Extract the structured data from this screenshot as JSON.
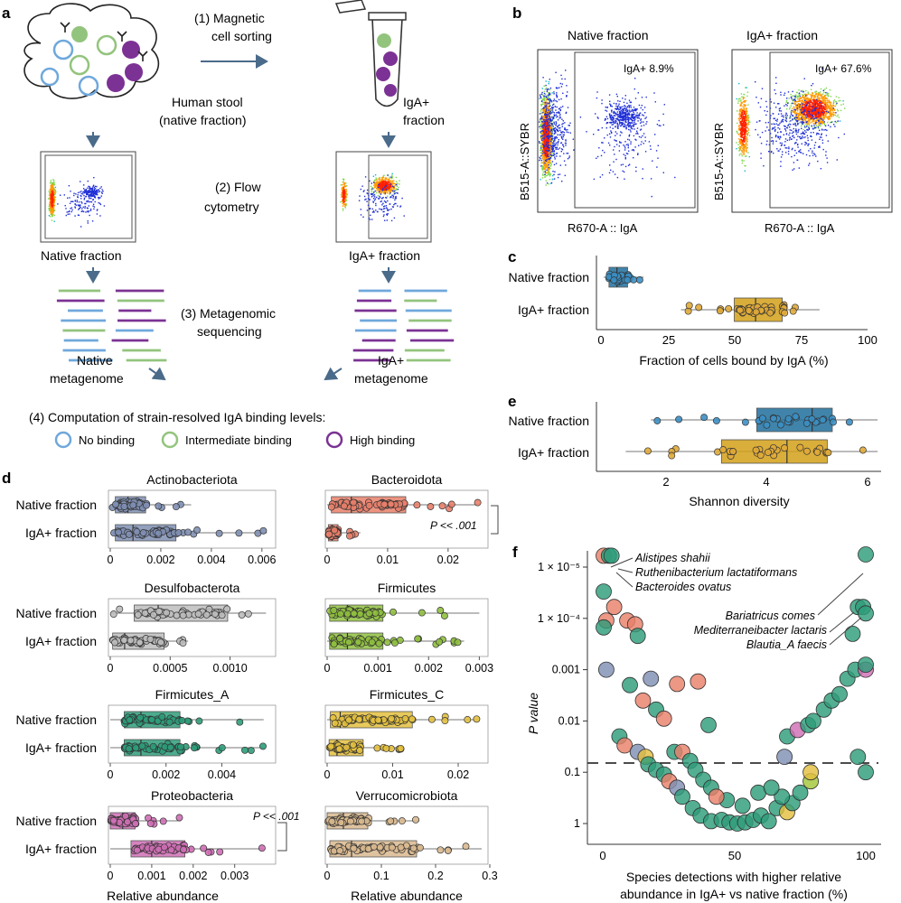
{
  "panels": {
    "a": {
      "letter": "a",
      "step1": [
        "(1) Magnetic",
        "cell sorting"
      ],
      "stool_label": [
        "Human stool",
        "(native fraction)"
      ],
      "iga_label": [
        "IgA+",
        "fraction"
      ],
      "step2": [
        "(2) Flow",
        "cytometry"
      ],
      "native_fraction": "Native fraction",
      "iga_fraction": "IgA+ fraction",
      "step3": [
        "(3) Metagenomic",
        "sequencing"
      ],
      "native_meta": [
        "Native",
        "metagenome"
      ],
      "iga_meta": [
        "IgA+",
        "metagenome"
      ],
      "step4": "(4) Computation of strain-resolved IgA binding levels:",
      "legend": [
        {
          "label": "No binding",
          "color": "#6fa8dc"
        },
        {
          "label": "Intermediate binding",
          "color": "#93c47d"
        },
        {
          "label": "High binding",
          "color": "#7b3294"
        }
      ]
    },
    "b": {
      "letter": "b",
      "plots": [
        {
          "title": "Native fraction",
          "gate_label": "IgA+ 8.9%",
          "ylabel": "B515-A::SYBR",
          "xlabel": "R670-A :: IgA"
        },
        {
          "title": "IgA+ fraction",
          "gate_label": "IgA+ 67.6%",
          "ylabel": "B515-A::SYBR",
          "xlabel": "R670-A :: IgA"
        }
      ]
    },
    "c": {
      "letter": "c",
      "xlabel": "Fraction of cells bound by IgA (%)",
      "ticks": [
        "0",
        "25",
        "50",
        "75",
        "100"
      ],
      "rows": [
        "Native fraction",
        "IgA+ fraction"
      ]
    },
    "e": {
      "letter": "e",
      "xlabel": "Shannon diversity",
      "ticks": [
        "2",
        "4",
        "6"
      ],
      "rows": [
        "Native fraction",
        "IgA+ fraction"
      ]
    },
    "d": {
      "letter": "d",
      "rows": [
        "Native fraction",
        "IgA+ fraction"
      ],
      "xlabel": "Relative abundance",
      "pval": "P << .001",
      "phyla": [
        {
          "name": "Actinobacteriota",
          "ticks": [
            "0",
            "0.002",
            "0.004",
            "0.006"
          ]
        },
        {
          "name": "Bacteroidota",
          "ticks": [
            "0",
            "0.01",
            "0.02"
          ]
        },
        {
          "name": "Desulfobacterota",
          "ticks": [
            "0",
            "0.0005",
            "0.0010"
          ]
        },
        {
          "name": "Firmicutes",
          "ticks": [
            "0",
            "0.001",
            "0.002",
            "0.003"
          ]
        },
        {
          "name": "Firmicutes_A",
          "ticks": [
            "0",
            "0.002",
            "0.004"
          ]
        },
        {
          "name": "Firmicutes_C",
          "ticks": [
            "0",
            "0.01",
            "0.02"
          ]
        },
        {
          "name": "Proteobacteria",
          "ticks": [
            "0",
            "0.001",
            "0.002",
            "0.003"
          ]
        },
        {
          "name": "Verrucomicrobiota",
          "ticks": [
            "0",
            "0.1",
            "0.2",
            "0.3"
          ]
        }
      ]
    },
    "f": {
      "letter": "f",
      "ylabel": "P value",
      "xlabel": [
        "Species detections with higher relative",
        "abundance in IgA+ vs native fraction (%)"
      ],
      "yticks": [
        "1 × 10⁻⁵",
        "1 × 10⁻⁴",
        "0.001",
        "0.01",
        "0.1",
        "1"
      ],
      "xticks": [
        "0",
        "50",
        "100"
      ],
      "left_labels": [
        "Alistipes shahii",
        "Ruthenibacterium lactatiformans",
        "Bacteroides ovatus"
      ],
      "right_labels": [
        "Bariatricus comes",
        "Mediterraneibacter lactaris",
        "Blautia_A faecis"
      ]
    }
  },
  "chart_data": [
    {
      "type": "box",
      "id": "c",
      "xlabel": "Fraction of cells bound by IgA (%)",
      "xlim": [
        0,
        100
      ],
      "categories": [
        "Native fraction",
        "IgA+ fraction"
      ],
      "series": [
        {
          "name": "Native fraction",
          "color": "#1f6e9c",
          "q1": 3,
          "median": 6,
          "q3": 10,
          "whisker": [
            1,
            16
          ]
        },
        {
          "name": "IgA+ fraction",
          "color": "#d4a017",
          "q1": 50,
          "median": 58,
          "q3": 68,
          "whisker": [
            30,
            82
          ]
        }
      ]
    },
    {
      "type": "box",
      "id": "e",
      "xlabel": "Shannon diversity",
      "xlim": [
        1,
        6.3
      ],
      "categories": [
        "Native fraction",
        "IgA+ fraction"
      ],
      "series": [
        {
          "name": "Native fraction",
          "color": "#1f6e9c",
          "q1": 3.8,
          "median": 4.9,
          "q3": 5.3,
          "whisker": [
            1.7,
            6.2
          ]
        },
        {
          "name": "IgA+ fraction",
          "color": "#d4a017",
          "q1": 3.1,
          "median": 4.4,
          "q3": 5.2,
          "whisker": [
            1.2,
            6.2
          ]
        }
      ]
    },
    {
      "type": "box",
      "id": "d",
      "xlabel": "Relative abundance",
      "categories": [
        "Native fraction",
        "IgA+ fraction"
      ],
      "panels": [
        {
          "name": "Actinobacteriota",
          "xlim": [
            0,
            0.0064
          ],
          "color": "#7f8fb3",
          "native": {
            "q1": 0.0002,
            "median": 0.0007,
            "q3": 0.0014,
            "whisker": [
              0,
              0.0032
            ]
          },
          "iga": {
            "q1": 0.0002,
            "median": 0.0009,
            "q3": 0.0026,
            "whisker": [
              0,
              0.0062
            ]
          }
        },
        {
          "name": "Bacteroidota",
          "xlim": [
            0,
            0.026
          ],
          "color": "#e9806a",
          "native": {
            "q1": 0.0007,
            "median": 0.004,
            "q3": 0.013,
            "whisker": [
              0,
              0.025
            ]
          },
          "iga": {
            "q1": 0.0002,
            "median": 0.0008,
            "q3": 0.0018,
            "whisker": [
              0,
              0.0055
            ]
          }
        },
        {
          "name": "Desulfobacterota",
          "xlim": [
            0,
            0.00135
          ],
          "color": "#bdbdbd",
          "native": {
            "q1": 0.0002,
            "median": 0.0004,
            "q3": 0.00098,
            "whisker": [
              0,
              0.0013
            ]
          },
          "iga": {
            "q1": 2e-05,
            "median": 0.00012,
            "q3": 0.00045,
            "whisker": [
              0,
              0.00065
            ]
          }
        },
        {
          "name": "Firmicutes",
          "xlim": [
            0,
            0.0031
          ],
          "color": "#8fbf3f",
          "native": {
            "q1": 5e-05,
            "median": 0.0004,
            "q3": 0.0011,
            "whisker": [
              0,
              0.003
            ]
          },
          "iga": {
            "q1": 5e-05,
            "median": 0.0004,
            "q3": 0.0011,
            "whisker": [
              0,
              0.0027
            ]
          }
        },
        {
          "name": "Firmicutes_A",
          "xlim": [
            0,
            0.0058
          ],
          "color": "#2e9c7a",
          "native": {
            "q1": 0.0005,
            "median": 0.0011,
            "q3": 0.0025,
            "whisker": [
              0,
              0.0055
            ]
          },
          "iga": {
            "q1": 0.0005,
            "median": 0.0011,
            "q3": 0.0025,
            "whisker": [
              0,
              0.0055
            ]
          }
        },
        {
          "name": "Firmicutes_C",
          "xlim": [
            0,
            0.024
          ],
          "color": "#e3c03f",
          "native": {
            "q1": 0.0005,
            "median": 0.002,
            "q3": 0.013,
            "whisker": [
              0,
              0.023
            ]
          },
          "iga": {
            "q1": 0.0003,
            "median": 0.0015,
            "q3": 0.0055,
            "whisker": [
              0,
              0.0115
            ]
          }
        },
        {
          "name": "Proteobacteria",
          "xlim": [
            0,
            0.0039
          ],
          "color": "#cf6fb5",
          "native": {
            "q1": 0,
            "median": 0.0003,
            "q3": 0.0006,
            "whisker": [
              0,
              0.0017
            ]
          },
          "iga": {
            "q1": 0.0005,
            "median": 0.001,
            "q3": 0.0018,
            "whisker": [
              0,
              0.0037
            ]
          }
        },
        {
          "name": "Verrucomicrobiota",
          "xlim": [
            0,
            0.29
          ],
          "color": "#d9b98f",
          "native": {
            "q1": 0,
            "median": 0.03,
            "q3": 0.075,
            "whisker": [
              0,
              0.17
            ]
          },
          "iga": {
            "q1": 0.005,
            "median": 0.045,
            "q3": 0.165,
            "whisker": [
              0,
              0.285
            ]
          }
        }
      ]
    },
    {
      "type": "scatter",
      "id": "f",
      "xlabel": "Species detections with higher relative abundance in IgA+ vs native fraction (%)",
      "ylabel": "P value",
      "xlim": [
        0,
        100
      ],
      "ylim_log10": [
        -5.3,
        0.15
      ],
      "threshold_p": 0.05,
      "points": [
        {
          "x": 0,
          "p": 6e-06,
          "c": "#e9806a"
        },
        {
          "x": 2,
          "p": 6e-06,
          "c": "#2e9c7a"
        },
        {
          "x": 3,
          "p": 6e-06,
          "c": "#2e9c7a"
        },
        {
          "x": 0,
          "p": 3e-05,
          "c": "#2e9c7a"
        },
        {
          "x": 1,
          "p": 0.00011,
          "c": "#e9806a"
        },
        {
          "x": 4,
          "p": 6e-05,
          "c": "#e9806a"
        },
        {
          "x": 0,
          "p": 0.00015,
          "c": "#2e9c7a"
        },
        {
          "x": 9,
          "p": 0.00011,
          "c": "#e9806a"
        },
        {
          "x": 12,
          "p": 0.00013,
          "c": "#e9806a"
        },
        {
          "x": 13,
          "p": 0.00022,
          "c": "#2e9c7a"
        },
        {
          "x": 1,
          "p": 0.001,
          "c": "#7f8fb3"
        },
        {
          "x": 18,
          "p": 0.0015,
          "c": "#7f8fb3"
        },
        {
          "x": 10,
          "p": 0.002,
          "c": "#2e9c7a"
        },
        {
          "x": 28,
          "p": 0.0019,
          "c": "#e9806a"
        },
        {
          "x": 36,
          "p": 0.0017,
          "c": "#e9806a"
        },
        {
          "x": 15,
          "p": 0.004,
          "c": "#e9806a"
        },
        {
          "x": 20,
          "p": 0.006,
          "c": "#2e9c7a"
        },
        {
          "x": 23,
          "p": 0.009,
          "c": "#e9806a"
        },
        {
          "x": 6,
          "p": 0.02,
          "c": "#2e9c7a"
        },
        {
          "x": 8,
          "p": 0.03,
          "c": "#e9806a"
        },
        {
          "x": 13,
          "p": 0.04,
          "c": "#7f8fb3"
        },
        {
          "x": 16,
          "p": 0.05,
          "c": "#e3c03f"
        },
        {
          "x": 17,
          "p": 0.07,
          "c": "#2e9c7a"
        },
        {
          "x": 20,
          "p": 0.09,
          "c": "#2e9c7a"
        },
        {
          "x": 23,
          "p": 0.11,
          "c": "#2e9c7a"
        },
        {
          "x": 27,
          "p": 0.04,
          "c": "#2e9c7a"
        },
        {
          "x": 30,
          "p": 0.04,
          "c": "#e9806a"
        },
        {
          "x": 33,
          "p": 0.06,
          "c": "#2e9c7a"
        },
        {
          "x": 35,
          "p": 0.09,
          "c": "#2e9c7a"
        },
        {
          "x": 38,
          "p": 0.14,
          "c": "#2e9c7a"
        },
        {
          "x": 41,
          "p": 0.2,
          "c": "#2e9c7a"
        },
        {
          "x": 25,
          "p": 0.15,
          "c": "#e9806a"
        },
        {
          "x": 28,
          "p": 0.2,
          "c": "#7f8fb3"
        },
        {
          "x": 30,
          "p": 0.3,
          "c": "#2e9c7a"
        },
        {
          "x": 34,
          "p": 0.5,
          "c": "#2e9c7a"
        },
        {
          "x": 37,
          "p": 0.7,
          "c": "#2e9c7a"
        },
        {
          "x": 41,
          "p": 0.9,
          "c": "#2e9c7a"
        },
        {
          "x": 45,
          "p": 0.85,
          "c": "#2e9c7a"
        },
        {
          "x": 48,
          "p": 0.95,
          "c": "#2e9c7a"
        },
        {
          "x": 51,
          "p": 1.0,
          "c": "#2e9c7a"
        },
        {
          "x": 54,
          "p": 0.95,
          "c": "#2e9c7a"
        },
        {
          "x": 57,
          "p": 0.85,
          "c": "#2e9c7a"
        },
        {
          "x": 60,
          "p": 0.7,
          "c": "#2e9c7a"
        },
        {
          "x": 63,
          "p": 0.9,
          "c": "#2e9c7a"
        },
        {
          "x": 66,
          "p": 0.5,
          "c": "#2e9c7a"
        },
        {
          "x": 70,
          "p": 0.6,
          "c": "#e3c03f"
        },
        {
          "x": 72,
          "p": 0.4,
          "c": "#2e9c7a"
        },
        {
          "x": 75,
          "p": 0.25,
          "c": "#2e9c7a"
        },
        {
          "x": 79,
          "p": 0.15,
          "c": "#a4c639"
        },
        {
          "x": 68,
          "p": 0.3,
          "c": "#2e9c7a"
        },
        {
          "x": 59,
          "p": 0.25,
          "c": "#2e9c7a"
        },
        {
          "x": 47,
          "p": 0.35,
          "c": "#2e9c7a"
        },
        {
          "x": 43,
          "p": 0.3,
          "c": "#e9806a"
        },
        {
          "x": 53,
          "p": 0.45,
          "c": "#2e9c7a"
        },
        {
          "x": 64,
          "p": 0.2,
          "c": "#2e9c7a"
        },
        {
          "x": 69,
          "p": 0.05,
          "c": "#7f8fb3"
        },
        {
          "x": 70,
          "p": 0.02,
          "c": "#2e9c7a"
        },
        {
          "x": 74,
          "p": 0.015,
          "c": "#cf6fb5"
        },
        {
          "x": 78,
          "p": 0.012,
          "c": "#2e9c7a"
        },
        {
          "x": 80,
          "p": 0.01,
          "c": "#2e9c7a"
        },
        {
          "x": 84,
          "p": 0.006,
          "c": "#2e9c7a"
        },
        {
          "x": 87,
          "p": 0.004,
          "c": "#2e9c7a"
        },
        {
          "x": 90,
          "p": 0.003,
          "c": "#2e9c7a"
        },
        {
          "x": 93,
          "p": 0.0015,
          "c": "#2e9c7a"
        },
        {
          "x": 96,
          "p": 0.001,
          "c": "#2e9c7a"
        },
        {
          "x": 100,
          "p": 0.001,
          "c": "#cf6fb5"
        },
        {
          "x": 100,
          "p": 0.0008,
          "c": "#2e9c7a"
        },
        {
          "x": 95,
          "p": 0.0002,
          "c": "#2e9c7a"
        },
        {
          "x": 97,
          "p": 6e-05,
          "c": "#2e9c7a"
        },
        {
          "x": 99,
          "p": 6e-05,
          "c": "#2e9c7a"
        },
        {
          "x": 100,
          "p": 8e-05,
          "c": "#2e9c7a"
        },
        {
          "x": 100,
          "p": 4e-06,
          "c": "#2e9c7a"
        },
        {
          "x": 97,
          "p": 0.05,
          "c": "#2e9c7a"
        },
        {
          "x": 100,
          "p": 0.1,
          "c": "#2e9c7a"
        },
        {
          "x": 79,
          "p": 0.1,
          "c": "#e3c03f"
        },
        {
          "x": 40,
          "p": 0.012,
          "c": "#2e9c7a"
        }
      ]
    }
  ]
}
